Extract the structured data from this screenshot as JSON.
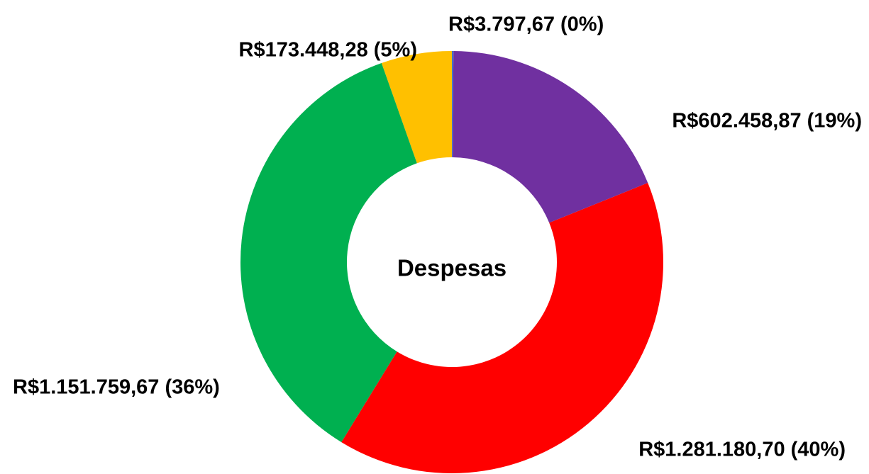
{
  "chart_data": {
    "type": "donut",
    "title": "Despesas",
    "categories": [
      null,
      null,
      null,
      null,
      null
    ],
    "values": [
      3797.67,
      602458.87,
      1281180.7,
      1151759.67,
      173448.28
    ],
    "value_labels": [
      "R$3.797,67 (0%)",
      "R$602.458,87 (19%)",
      "R$1.281.180,70 (40%)",
      "R$1.151.759,67 (36%)",
      "R$173.448,28 (5%)"
    ],
    "colors": [
      "#4472c4",
      "#7030a0",
      "#ff0000",
      "#00b050",
      "#ffc000"
    ]
  }
}
